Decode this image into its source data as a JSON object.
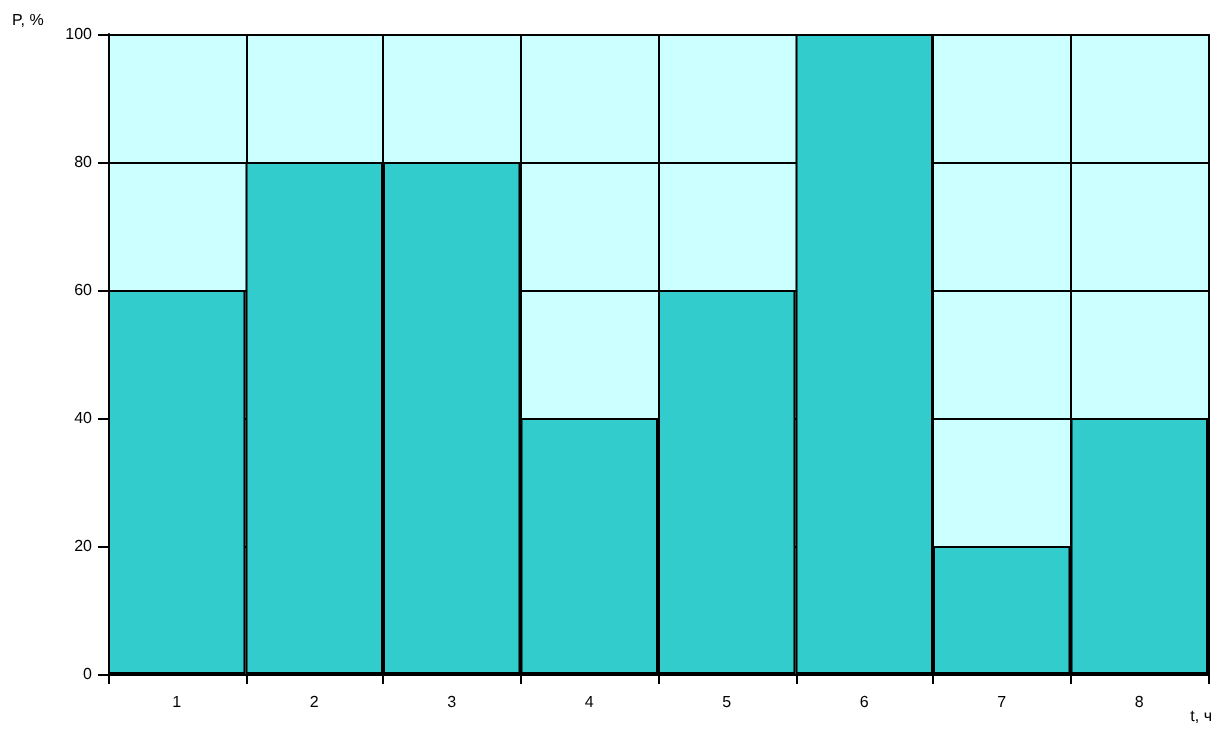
{
  "chart_data": {
    "type": "bar",
    "ylabel": "P, %",
    "xlabel": "t, ч",
    "categories": [
      "1",
      "2",
      "3",
      "4",
      "5",
      "6",
      "7",
      "8"
    ],
    "values": [
      60,
      80,
      80,
      40,
      60,
      100,
      20,
      40
    ],
    "color": "#33cccc",
    "ylim": [
      0,
      100
    ],
    "yticks": [
      0,
      20,
      40,
      60,
      80,
      100
    ],
    "grid": true,
    "bands": [
      {
        "axis": "y",
        "from": 0,
        "to": 100,
        "color": "#ccffff"
      }
    ]
  }
}
